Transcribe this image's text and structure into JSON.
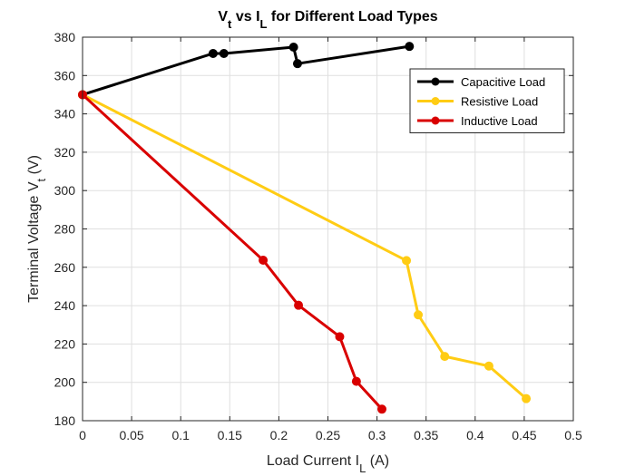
{
  "chart_data": {
    "type": "line",
    "title": {
      "parts": [
        {
          "text": "V",
          "sub": false
        },
        {
          "text": "t",
          "sub": true
        },
        {
          "text": " vs I",
          "sub": false
        },
        {
          "text": "L",
          "sub": true
        },
        {
          "text": " for Different Load Types",
          "sub": false
        }
      ]
    },
    "xlabel": {
      "parts": [
        {
          "text": "Load Current I",
          "sub": false
        },
        {
          "text": "L",
          "sub": true
        },
        {
          "text": " (A)",
          "sub": false
        }
      ]
    },
    "ylabel": {
      "parts": [
        {
          "text": "Terminal Voltage V",
          "sub": false
        },
        {
          "text": "t",
          "sub": true
        },
        {
          "text": " (V)",
          "sub": false
        }
      ]
    },
    "xlim": [
      0,
      0.5
    ],
    "ylim": [
      180,
      380
    ],
    "xticks": [
      0,
      0.05,
      0.1,
      0.15,
      0.2,
      0.25,
      0.3,
      0.35,
      0.4,
      0.45,
      0.5
    ],
    "xtick_labels": [
      "0",
      "0.05",
      "0.1",
      "0.15",
      "0.2",
      "0.25",
      "0.3",
      "0.35",
      "0.4",
      "0.45",
      "0.5"
    ],
    "yticks": [
      180,
      200,
      220,
      240,
      260,
      280,
      300,
      320,
      340,
      360,
      380
    ],
    "ytick_labels": [
      "180",
      "200",
      "220",
      "240",
      "260",
      "280",
      "300",
      "320",
      "340",
      "360",
      "380"
    ],
    "grid": true,
    "legend_position": "top-right",
    "series": [
      {
        "name": "Capacitive Load",
        "color": "#000000",
        "x": [
          0,
          0.133,
          0.144,
          0.215,
          0.219,
          0.333
        ],
        "y": [
          350,
          371.5,
          371.5,
          374.8,
          366.2,
          375.2
        ]
      },
      {
        "name": "Resistive Load",
        "color": "#ffcc14",
        "x": [
          0,
          0.33,
          0.342,
          0.369,
          0.414,
          0.452
        ],
        "y": [
          350,
          263.5,
          235.2,
          213.5,
          208.5,
          191.5
        ]
      },
      {
        "name": "Inductive Load",
        "color": "#d90000",
        "x": [
          0,
          0.184,
          0.22,
          0.262,
          0.279,
          0.305
        ],
        "y": [
          350,
          263.7,
          240.2,
          223.8,
          200.5,
          186
        ]
      }
    ]
  }
}
